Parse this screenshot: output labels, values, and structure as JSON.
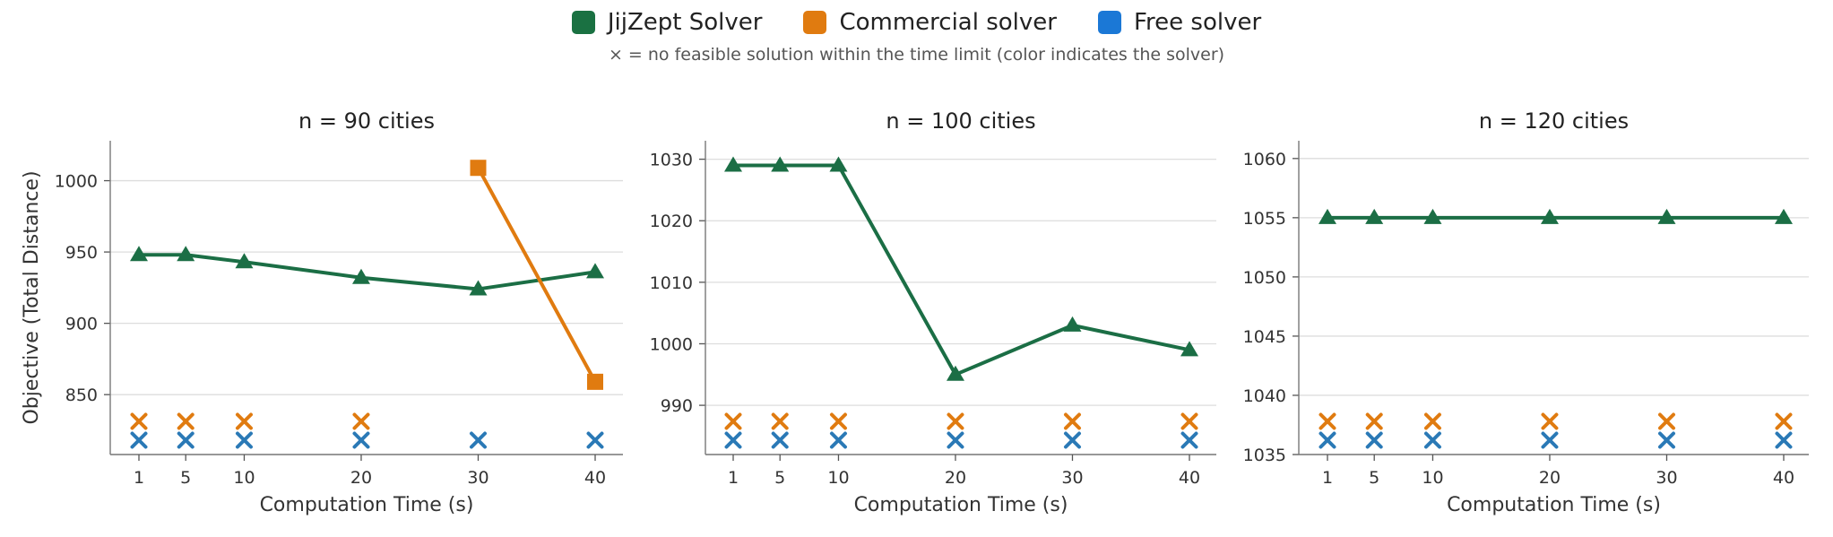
{
  "legend": {
    "items": [
      {
        "label": "JijZept Solver",
        "color": "#1a7142"
      },
      {
        "label": "Commercial solver",
        "color": "#e07b10"
      },
      {
        "label": "Free solver",
        "color": "#1b78d6"
      }
    ]
  },
  "note": "× = no feasible solution within the time limit (color indicates the solver)",
  "chart_data": [
    {
      "type": "line",
      "title": "n = 90 cities",
      "xlabel": "Computation Time (s)",
      "ylabel": "Objective (Total Distance)",
      "x": [
        1,
        5,
        10,
        20,
        30,
        40
      ],
      "xticks": [
        "1",
        "5",
        "10",
        "20",
        "30",
        "40"
      ],
      "yticks": [
        850,
        900,
        950,
        1000
      ],
      "ylim": [
        808,
        1028
      ],
      "grid": "horizontal",
      "series": [
        {
          "name": "JijZept Solver",
          "marker": "triangle",
          "color": "#1b6e45",
          "values": [
            948,
            948,
            943,
            932,
            924,
            936
          ]
        },
        {
          "name": "Commercial solver",
          "marker": "square",
          "color": "#e07b10",
          "values": [
            null,
            null,
            null,
            null,
            1009,
            859
          ]
        }
      ],
      "infeasible": [
        {
          "name": "Commercial solver",
          "color": "#e07b10",
          "x": [
            1,
            5,
            10,
            20
          ]
        },
        {
          "name": "Free solver",
          "color": "#2a79b6",
          "x": [
            1,
            5,
            10,
            20,
            30,
            40
          ]
        }
      ]
    },
    {
      "type": "line",
      "title": "n = 100 cities",
      "xlabel": "Computation Time (s)",
      "ylabel": "",
      "x": [
        1,
        5,
        10,
        20,
        30,
        40
      ],
      "xticks": [
        "1",
        "5",
        "10",
        "20",
        "30",
        "40"
      ],
      "yticks": [
        990,
        1000,
        1010,
        1020,
        1030
      ],
      "ylim": [
        982,
        1033
      ],
      "grid": "horizontal",
      "series": [
        {
          "name": "JijZept Solver",
          "marker": "triangle",
          "color": "#1b6e45",
          "values": [
            1029,
            1029,
            1029,
            995,
            1003,
            999
          ]
        }
      ],
      "infeasible": [
        {
          "name": "Commercial solver",
          "color": "#e07b10",
          "x": [
            1,
            5,
            10,
            20,
            30,
            40
          ]
        },
        {
          "name": "Free solver",
          "color": "#2a79b6",
          "x": [
            1,
            5,
            10,
            20,
            30,
            40
          ]
        }
      ]
    },
    {
      "type": "line",
      "title": "n = 120 cities",
      "xlabel": "Computation Time (s)",
      "ylabel": "",
      "x": [
        1,
        5,
        10,
        20,
        30,
        40
      ],
      "xticks": [
        "1",
        "5",
        "10",
        "20",
        "30",
        "40"
      ],
      "yticks": [
        1035,
        1040,
        1045,
        1050,
        1055,
        1060
      ],
      "ylim": [
        1035,
        1061.5
      ],
      "grid": "horizontal",
      "series": [
        {
          "name": "JijZept Solver",
          "marker": "triangle",
          "color": "#1b6e45",
          "values": [
            1055,
            1055,
            1055,
            1055,
            1055,
            1055
          ]
        }
      ],
      "infeasible": [
        {
          "name": "Commercial solver",
          "color": "#e07b10",
          "x": [
            1,
            5,
            10,
            20,
            30,
            40
          ]
        },
        {
          "name": "Free solver",
          "color": "#2a79b6",
          "x": [
            1,
            5,
            10,
            20,
            30,
            40
          ]
        }
      ]
    }
  ]
}
